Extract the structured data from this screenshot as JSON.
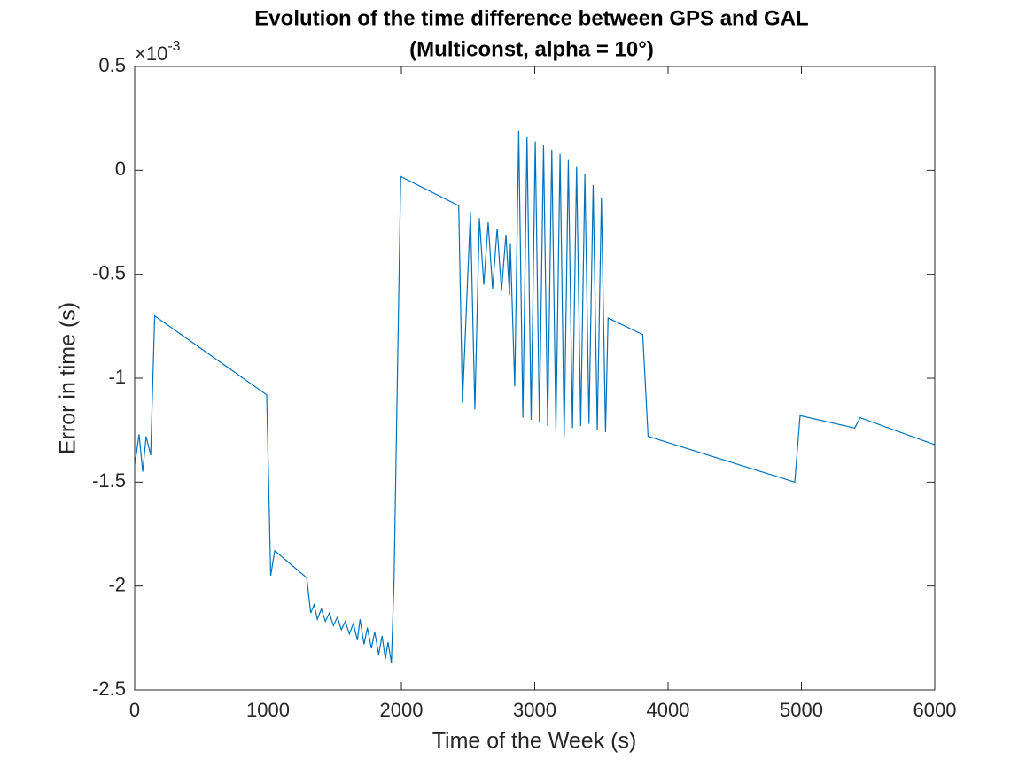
{
  "chart_data": {
    "type": "line",
    "title": [
      "Evolution of the time difference between GPS and GAL",
      "(Multiconst, alpha = 10°)"
    ],
    "x_label": "Time of the Week (s)",
    "y_label": "Error in time (s)",
    "y_multiplier": "×10",
    "y_multiplier_exponent": "-3",
    "xlim": [
      0,
      6000
    ],
    "xticks": [
      0,
      1000,
      2000,
      3000,
      4000,
      5000,
      6000
    ],
    "ylim": [
      -2.5,
      0.5
    ],
    "yticks": [
      -2.5,
      -2,
      -1.5,
      -1,
      -0.5,
      0,
      0.5
    ],
    "grid": false,
    "x": [
      0,
      33,
      60,
      86,
      120,
      150,
      990,
      1020,
      1050,
      1290,
      1320,
      1345,
      1370,
      1400,
      1430,
      1460,
      1490,
      1520,
      1550,
      1580,
      1610,
      1640,
      1670,
      1690,
      1720,
      1745,
      1775,
      1800,
      1830,
      1855,
      1880,
      1900,
      1925,
      1945,
      1995,
      2430,
      2458,
      2518,
      2551,
      2585,
      2618,
      2651,
      2684,
      2718,
      2751,
      2784,
      2811,
      2817,
      2850,
      2880,
      2911,
      2942,
      2973,
      3004,
      3035,
      3066,
      3097,
      3128,
      3159,
      3190,
      3221,
      3252,
      3283,
      3314,
      3345,
      3376,
      3407,
      3438,
      3469,
      3500,
      3531,
      3550,
      3810,
      3850,
      4950,
      4990,
      5400,
      5440,
      6000
    ],
    "series": [
      {
        "color": "#0072bd",
        "values": [
          -1.42,
          -1.27,
          -1.45,
          -1.28,
          -1.37,
          -0.7,
          -1.08,
          -1.95,
          -1.83,
          -1.96,
          -2.13,
          -2.09,
          -2.16,
          -2.11,
          -2.17,
          -2.13,
          -2.19,
          -2.15,
          -2.21,
          -2.17,
          -2.23,
          -2.18,
          -2.26,
          -2.16,
          -2.28,
          -2.2,
          -2.3,
          -2.22,
          -2.33,
          -2.24,
          -2.35,
          -2.27,
          -2.37,
          -1.97,
          -0.03,
          -0.17,
          -1.12,
          -0.2,
          -1.15,
          -0.23,
          -0.55,
          -0.25,
          -0.57,
          -0.28,
          -0.58,
          -0.31,
          -0.6,
          -0.35,
          -1.04,
          0.19,
          -1.19,
          0.16,
          -1.2,
          0.14,
          -1.21,
          0.12,
          -1.23,
          0.1,
          -1.25,
          0.08,
          -1.28,
          0.05,
          -1.24,
          0.02,
          -1.23,
          -0.02,
          -1.22,
          -0.07,
          -1.25,
          -0.13,
          -1.26,
          -0.71,
          -0.79,
          -1.28,
          -1.5,
          -1.18,
          -1.24,
          -1.19,
          -1.32
        ]
      }
    ]
  }
}
